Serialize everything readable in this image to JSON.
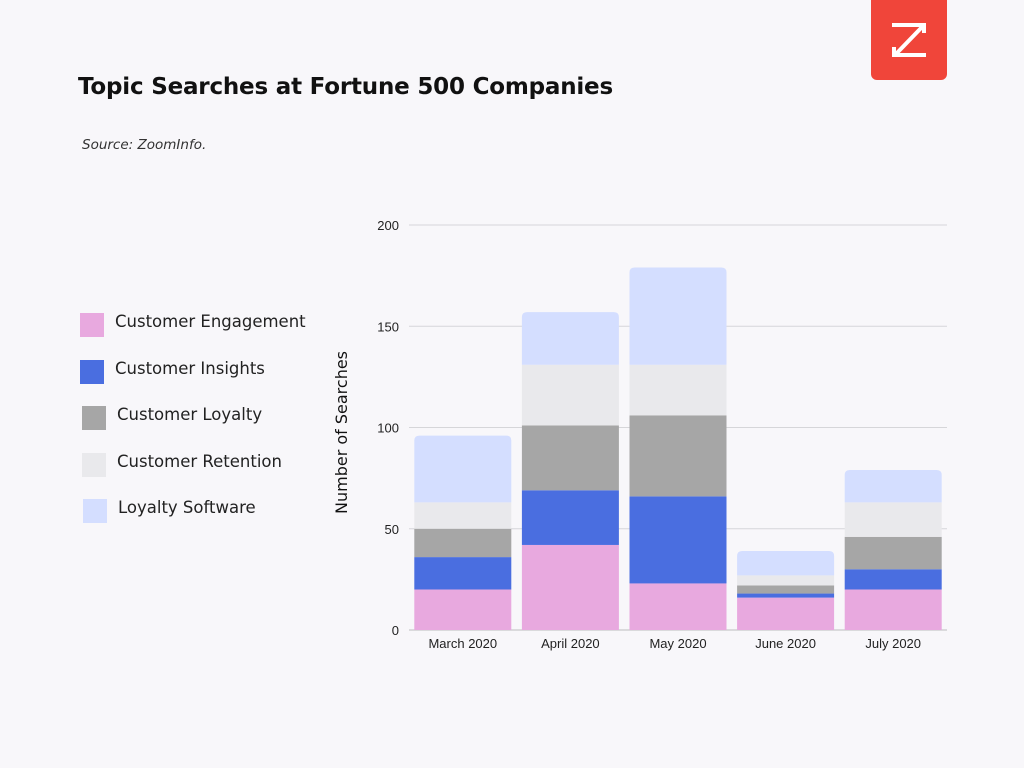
{
  "header": {
    "title": "Topic Searches at Fortune 500 Companies",
    "source": "Source: ZoomInfo."
  },
  "logo": {
    "icon": "zoominfo-z-logo",
    "color": "#f0453a"
  },
  "chart_data": {
    "type": "bar",
    "stacked": true,
    "title": "Topic Searches at Fortune 500 Companies",
    "xlabel": "",
    "ylabel": "Number of Searches",
    "ylim": [
      0,
      200
    ],
    "yticks": [
      0,
      50,
      100,
      150,
      200
    ],
    "grid": true,
    "legend": "left",
    "categories": [
      "March 2020",
      "April 2020",
      "May 2020",
      "June 2020",
      "July 2020"
    ],
    "series": [
      {
        "name": "Customer Engagement",
        "color": "#e8a9df",
        "values": [
          20,
          42,
          23,
          16,
          20
        ]
      },
      {
        "name": "Customer Insights",
        "color": "#4a6ee0",
        "values": [
          16,
          27,
          43,
          2,
          10
        ]
      },
      {
        "name": "Customer Loyalty",
        "color": "#a6a6a6",
        "values": [
          14,
          32,
          40,
          4,
          16
        ]
      },
      {
        "name": "Customer Retention",
        "color": "#e9e9ec",
        "values": [
          13,
          30,
          25,
          5,
          17
        ]
      },
      {
        "name": "Loyalty Software",
        "color": "#d4deff",
        "values": [
          33,
          26,
          48,
          12,
          16
        ]
      }
    ]
  }
}
